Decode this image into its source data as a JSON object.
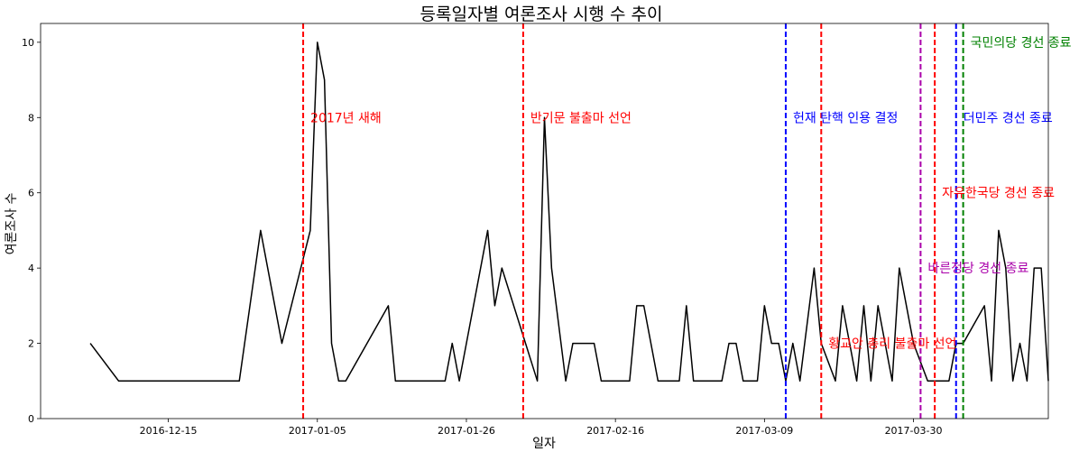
{
  "chart_data": {
    "type": "line",
    "title": "등록일자별 여론조사 시행 수 추이",
    "xlabel": "일자",
    "ylabel": "여론조사 수",
    "x_start": "2016-11-30",
    "xlim_days": [
      -3,
      139
    ],
    "ylim": [
      0,
      10.5
    ],
    "yticks": [
      0,
      2,
      4,
      6,
      8,
      10
    ],
    "xticks": [
      {
        "day": 15,
        "label": "2016-12-15"
      },
      {
        "day": 36,
        "label": "2017-01-05"
      },
      {
        "day": 57,
        "label": "2017-01-26"
      },
      {
        "day": 78,
        "label": "2017-02-16"
      },
      {
        "day": 99,
        "label": "2017-03-09"
      },
      {
        "day": 120,
        "label": "2017-03-30"
      }
    ],
    "series": [
      {
        "name": "여론조사 수",
        "color": "#000000",
        "points": [
          [
            4,
            2
          ],
          [
            8,
            1
          ],
          [
            12,
            1
          ],
          [
            16,
            1
          ],
          [
            20,
            1
          ],
          [
            24,
            1
          ],
          [
            25,
            1
          ],
          [
            28,
            5
          ],
          [
            31,
            2
          ],
          [
            35,
            5
          ],
          [
            36,
            10
          ],
          [
            37,
            9
          ],
          [
            38,
            2
          ],
          [
            39,
            1
          ],
          [
            40,
            1
          ],
          [
            46,
            3
          ],
          [
            47,
            1
          ],
          [
            50,
            1
          ],
          [
            54,
            1
          ],
          [
            55,
            2
          ],
          [
            56,
            1
          ],
          [
            60,
            5
          ],
          [
            61,
            3
          ],
          [
            62,
            4
          ],
          [
            67,
            1
          ],
          [
            68,
            8
          ],
          [
            69,
            4
          ],
          [
            71,
            1
          ],
          [
            72,
            2
          ],
          [
            75,
            2
          ],
          [
            76,
            1
          ],
          [
            80,
            1
          ],
          [
            81,
            3
          ],
          [
            82,
            3
          ],
          [
            84,
            1
          ],
          [
            87,
            1
          ],
          [
            88,
            3
          ],
          [
            89,
            1
          ],
          [
            93,
            1
          ],
          [
            94,
            2
          ],
          [
            95,
            2
          ],
          [
            96,
            1
          ],
          [
            98,
            1
          ],
          [
            99,
            3
          ],
          [
            100,
            2
          ],
          [
            101,
            2
          ],
          [
            102,
            1
          ],
          [
            103,
            2
          ],
          [
            104,
            1
          ],
          [
            106,
            4
          ],
          [
            107,
            2
          ],
          [
            109,
            1
          ],
          [
            110,
            3
          ],
          [
            112,
            1
          ],
          [
            113,
            3
          ],
          [
            114,
            1
          ],
          [
            115,
            3
          ],
          [
            117,
            1
          ],
          [
            118,
            4
          ],
          [
            120,
            2
          ],
          [
            122,
            1
          ],
          [
            124,
            1
          ],
          [
            125,
            1
          ],
          [
            126,
            2
          ],
          [
            127,
            2
          ],
          [
            130,
            3
          ],
          [
            131,
            1
          ],
          [
            132,
            5
          ],
          [
            133,
            4
          ],
          [
            134,
            1
          ],
          [
            135,
            2
          ],
          [
            136,
            1
          ],
          [
            137,
            4
          ],
          [
            138,
            4
          ],
          [
            139,
            1
          ]
        ]
      }
    ],
    "events": [
      {
        "day": 34,
        "color": "#ff0000",
        "label": "2017년 새해",
        "label_y": 8.0
      },
      {
        "day": 65,
        "color": "#ff0000",
        "label": "반기문 불출마 선언",
        "label_y": 8.0
      },
      {
        "day": 102,
        "color": "#0000ff",
        "label": "헌재 탄핵 인용 결정",
        "label_y": 8.0
      },
      {
        "day": 107,
        "color": "#ff0000",
        "label": "황교안 총리 불출마 선언",
        "label_y": 2.0
      },
      {
        "day": 121,
        "color": "#aa00aa",
        "label": "바른정당 경선 종료",
        "label_y": 4.0
      },
      {
        "day": 123,
        "color": "#ff0000",
        "label": "자유한국당 경선 종료",
        "label_y": 6.0
      },
      {
        "day": 126,
        "color": "#0000ff",
        "label": "더민주 경선 종료",
        "label_y": 8.0
      },
      {
        "day": 127,
        "color": "#008000",
        "label": "국민의당 경선 종료",
        "label_y": 10.0
      }
    ]
  }
}
